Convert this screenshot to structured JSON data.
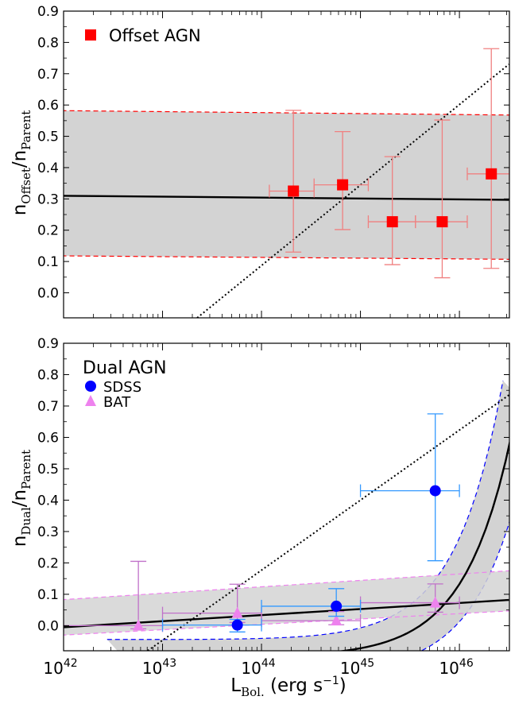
{
  "chart_data": [
    {
      "type": "scatter",
      "panel": "top",
      "ylabel": {
        "main": "n",
        "sub1": "Offset",
        "mid": "/n",
        "sub2": "Parent"
      },
      "xlabel": "",
      "x_scale": "log",
      "xlim": [
        1e+42,
        3.2e+46
      ],
      "ylim": [
        -0.08,
        0.9
      ],
      "yticks": [
        0.0,
        0.1,
        0.2,
        0.3,
        0.4,
        0.5,
        0.6,
        0.7,
        0.8,
        0.9
      ],
      "ytick_labels": [
        "0.0",
        "0.1",
        "0.2",
        "0.3",
        "0.4",
        "0.5",
        "0.6",
        "0.7",
        "0.8",
        "0.9"
      ],
      "legend": {
        "placement": "top-left",
        "entries": [
          {
            "label": "Offset AGN",
            "marker": "square",
            "color": "#ff0000"
          }
        ]
      },
      "series": [
        {
          "name": "Offset AGN",
          "marker": "square",
          "color": "#ff0000",
          "errcolor": "#f08080",
          "points": [
            {
              "x": 2.1e+44,
              "y": 0.325,
              "xlo": 1.2e+44,
              "xhi": 3.4e+44,
              "ylo": 0.13,
              "yhi": 0.583
            },
            {
              "x": 6.6e+44,
              "y": 0.345,
              "xlo": 3.4e+44,
              "xhi": 1.2e+45,
              "ylo": 0.202,
              "yhi": 0.515
            },
            {
              "x": 2.1e+45,
              "y": 0.227,
              "xlo": 1.2e+45,
              "xhi": 3.6e+45,
              "ylo": 0.09,
              "yhi": 0.435
            },
            {
              "x": 6.7e+45,
              "y": 0.227,
              "xlo": 3.6e+45,
              "xhi": 1.2e+46,
              "ylo": 0.048,
              "yhi": 0.552
            },
            {
              "x": 2.1e+46,
              "y": 0.38,
              "xlo": 1.2e+46,
              "xhi": 3.2e+46,
              "ylo": 0.078,
              "yhi": 0.78
            }
          ]
        }
      ],
      "fit": {
        "color": "#000000",
        "y_at_1e42": 0.31,
        "y_at_3e46": 0.297
      },
      "band": {
        "fill": "#d3d3d3",
        "edge": "#ff0000",
        "lower": [
          0.118,
          0.107
        ],
        "upper": [
          0.582,
          0.568
        ]
      },
      "reference_line": {
        "style": "dotted",
        "logx_a": 43.35,
        "y_a": -0.08,
        "logx_b": 46.5,
        "y_b": 0.73
      }
    },
    {
      "type": "scatter",
      "panel": "bottom",
      "ylabel": {
        "main": "n",
        "sub1": "Dual",
        "mid": "/n",
        "sub2": "Parent"
      },
      "xlabel": {
        "main": "L",
        "sub": "Bol.",
        "rest": " (erg s",
        "sup": "−1",
        "end": ")"
      },
      "x_scale": "log",
      "xlim": [
        1e+42,
        3.2e+46
      ],
      "ylim": [
        -0.08,
        0.9
      ],
      "yticks": [
        0.0,
        0.1,
        0.2,
        0.3,
        0.4,
        0.5,
        0.6,
        0.7,
        0.8,
        0.9
      ],
      "ytick_labels": [
        "0.0",
        "0.1",
        "0.2",
        "0.3",
        "0.4",
        "0.5",
        "0.6",
        "0.7",
        "0.8",
        "0.9"
      ],
      "xticks": [
        42,
        43,
        44,
        45,
        46
      ],
      "xtick_labels": [
        {
          "base": "10",
          "exp": "42"
        },
        {
          "base": "10",
          "exp": "43"
        },
        {
          "base": "10",
          "exp": "44"
        },
        {
          "base": "10",
          "exp": "45"
        },
        {
          "base": "10",
          "exp": "46"
        }
      ],
      "legend": {
        "placement": "top-left",
        "title": "Dual AGN",
        "entries": [
          {
            "label": "SDSS",
            "marker": "circle",
            "color": "#0000ff"
          },
          {
            "label": "BAT",
            "marker": "triangle",
            "color": "#ee82ee"
          }
        ]
      },
      "series": [
        {
          "name": "SDSS",
          "marker": "circle",
          "color": "#0000ff",
          "errcolor": "#3399ff",
          "points": [
            {
              "x": 5.7e+43,
              "y": 0.002,
              "xlo": 1e+43,
              "xhi": 1e+44,
              "ylo": -0.02,
              "yhi": 0.02
            },
            {
              "x": 5.7e+44,
              "y": 0.062,
              "xlo": 1e+44,
              "xhi": 1e+45,
              "ylo": 0.03,
              "yhi": 0.118
            },
            {
              "x": 5.7e+45,
              "y": 0.43,
              "xlo": 1e+45,
              "xhi": 1e+46,
              "ylo": 0.207,
              "yhi": 0.675
            }
          ]
        },
        {
          "name": "BAT",
          "marker": "triangle",
          "color": "#ee82ee",
          "errcolor": "#c071c9",
          "points": [
            {
              "x": 5.7e+42,
              "y": 0.0,
              "xlo": 1e+42,
              "xhi": 1e+43,
              "ylo": -0.01,
              "yhi": 0.205
            },
            {
              "x": 5.7e+43,
              "y": 0.04,
              "xlo": 1e+43,
              "xhi": 1e+44,
              "ylo": 0.01,
              "yhi": 0.132
            },
            {
              "x": 5.7e+44,
              "y": 0.016,
              "xlo": 1e+44,
              "xhi": 1e+45,
              "ylo": 0.003,
              "yhi": 0.045
            },
            {
              "x": 5.7e+45,
              "y": 0.073,
              "xlo": 1e+45,
              "xhi": 1e+46,
              "ylo": 0.043,
              "yhi": 0.133
            }
          ]
        }
      ],
      "sdss_fit": {
        "color": "#000000",
        "logx_start": 43.45,
        "logx_end": 46.5,
        "k": 0.92,
        "x0": 46.5,
        "y_at_x0": 0.57,
        "offset": -0.1
      },
      "sdss_band": {
        "fill": "#d3d3d3",
        "edge": "#0000ff",
        "width_left": 0.16,
        "width_right": 0.15
      },
      "bat_fit": {
        "color": "#000000",
        "y_at_1e42": -0.005,
        "y_at_3e46": 0.082
      },
      "bat_band": {
        "fill": "#d3d3d3",
        "edge": "#ee82ee",
        "lower": [
          -0.03,
          0.047
        ],
        "upper": [
          0.083,
          0.175
        ]
      },
      "reference_line": {
        "style": "dotted",
        "logx_a": 42.85,
        "y_a": -0.08,
        "logx_b": 46.5,
        "y_b": 0.735
      }
    }
  ]
}
